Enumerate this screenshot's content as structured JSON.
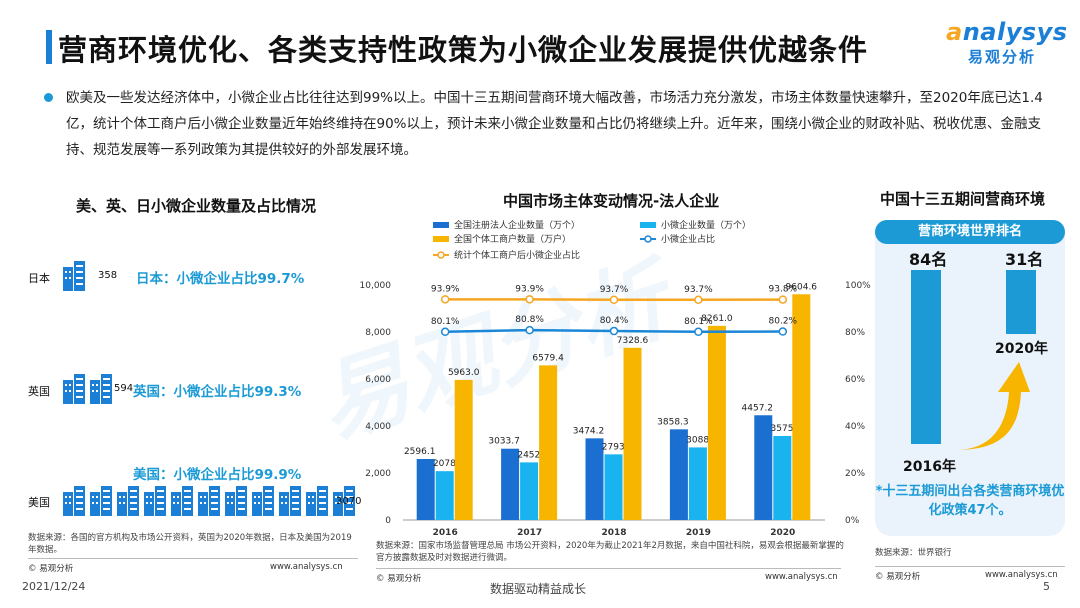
{
  "header": {
    "title": "营商环境优化、各类支持性政策为小微企业发展提供优越条件",
    "logo_en_a": "a",
    "logo_en_rest": "nalysys",
    "logo_cn": "易观分析"
  },
  "intro": {
    "text": "欧美及一些发达经济体中，小微企业占比往往达到99%以上。中国十三五期间营商环境大幅改善，市场活力充分激发，市场主体数量快速攀升，至2020年底已达1.4亿，统计个体工商户后小微企业数量近年始终维持在90%以上，预计未来小微企业数量和占比仍将继续上升。近年来，围绕小微企业的财政补贴、税收优惠、金融支持、规范发展等一系列政策为其提供较好的外部发展环境。"
  },
  "left_panel": {
    "title": "美、英、日小微企业数量及占比情况",
    "countries": [
      {
        "name": "日本",
        "value": "358",
        "ratio_text": "日本：小微企业占比99.7%",
        "icons": 1
      },
      {
        "name": "英国",
        "value": "594",
        "ratio_text": "英国：小微企业占比99.3%",
        "icons": 2
      },
      {
        "name": "美国",
        "value": "3070",
        "ratio_text": "美国：小微企业占比99.9%",
        "icons": 11
      }
    ],
    "source": "数据来源：各国的官方机构及市场公开资料，英国为2020年数据，日本及美国为2019年数据。",
    "brand": "© 易观分析",
    "site": "www.analysys.cn"
  },
  "chart_data": {
    "type": "bar",
    "title": "中国市场主体变动情况-法人企业",
    "categories": [
      "2016",
      "2017",
      "2018",
      "2019",
      "2020"
    ],
    "ylim": [
      0,
      10000
    ],
    "y2lim": [
      0,
      100
    ],
    "yticks": [
      "0",
      "2,000",
      "4,000",
      "6,000",
      "8,000",
      "10,000"
    ],
    "y2ticks": [
      "0%",
      "20%",
      "40%",
      "60%",
      "80%",
      "100%"
    ],
    "series": [
      {
        "name": "全国注册法人企业数量（万个）",
        "type": "bar",
        "color": "#1b6fd1",
        "values": [
          2596.1,
          3033.7,
          3474.2,
          3858.3,
          4457.2
        ],
        "labels": [
          "2596.1",
          "3033.7",
          "3474.2",
          "3858.3",
          "4457.2"
        ]
      },
      {
        "name": "小微企业数量（万个）",
        "type": "bar",
        "color": "#19b4f0",
        "values": [
          2078.3,
          2452.1,
          2793.6,
          3088.7,
          3575.5
        ],
        "labels": [
          "2078.3",
          "2452.1",
          "2793.6",
          "3088.7",
          "3575.5"
        ]
      },
      {
        "name": "全国个体工商户数量（万户）",
        "type": "bar",
        "color": "#f7b500",
        "values": [
          5963.0,
          6579.4,
          7328.6,
          8261.0,
          9604.6
        ],
        "labels": [
          "5963.0",
          "6579.4",
          "7328.6",
          "8261.0",
          "9604.6"
        ]
      },
      {
        "name": "小微企业占比",
        "type": "line",
        "color": "#1b87d6",
        "values": [
          80.1,
          80.8,
          80.4,
          80.1,
          80.2
        ],
        "labels": [
          "80.1%",
          "80.8%",
          "80.4%",
          "80.1%",
          "80.2%"
        ]
      },
      {
        "name": "统计个体工商户后小微企业占比",
        "type": "line",
        "color": "#f5a623",
        "values": [
          93.9,
          93.9,
          93.7,
          93.7,
          93.8
        ],
        "labels": [
          "93.9%",
          "93.9%",
          "93.7%",
          "93.7%",
          "93.8%"
        ]
      }
    ],
    "source": "数据来源：国家市场监督管理总局 市场公开资料，2020年为截止2021年2月数据，来自中国社科院，易观会根据最新掌握的官方披露数据及时对数据进行微调。",
    "brand": "© 易观分析",
    "site": "www.analysys.cn"
  },
  "right_panel": {
    "title": "中国十三五期间营商环境",
    "box_title": "营商环境世界排名",
    "rank_2016": "84名",
    "rank_2020": "31名",
    "year_2016": "2016年",
    "year_2020": "2020年",
    "policy_text": "*十三五期间出台各类营商环境优化政策47个。",
    "source": "数据来源：世界银行",
    "brand": "© 易观分析",
    "site": "www.analysys.cn"
  },
  "footer": {
    "date": "2021/12/24",
    "slogan": "数据驱动精益成长",
    "page": "5"
  },
  "watermark": "易观分析",
  "colors": {
    "accent": "#1b7fd6",
    "light_blue": "#1b9ad6",
    "orange": "#f5a623"
  }
}
